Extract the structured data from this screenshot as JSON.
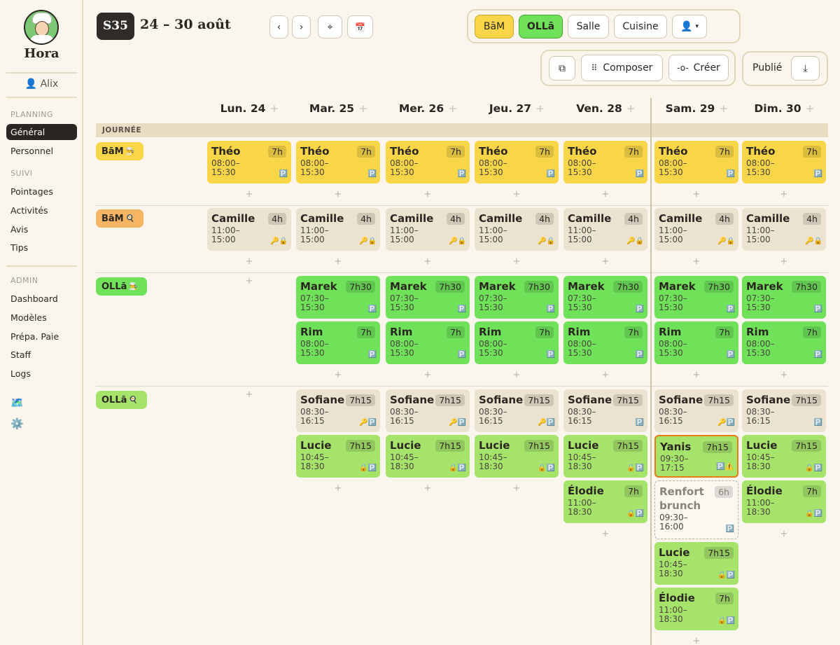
{
  "app": {
    "name": "Hora",
    "user": "Alix"
  },
  "sidebar": {
    "sections": [
      {
        "title": "PLANNING",
        "items": [
          "Général",
          "Personnel"
        ]
      },
      {
        "title": "SUIVI",
        "items": [
          "Pointages",
          "Activités",
          "Avis",
          "Tips"
        ]
      },
      {
        "title": "ADMIN",
        "items": [
          "Dashboard",
          "Modèles",
          "Prépa. Paie",
          "Staff",
          "Logs"
        ]
      }
    ],
    "active": "Général",
    "bottom_icons": [
      "🗺️",
      "⚙️"
    ]
  },
  "header": {
    "week": "S35",
    "range": "24 – 30 août",
    "prev": "‹",
    "next": "›",
    "filters": [
      "BāM",
      "OLLā",
      "Salle",
      "Cuisine"
    ],
    "actions": {
      "compose": "Composer",
      "create": "Créer",
      "published": "Publié"
    }
  },
  "colors": {
    "yellow": "#f9d648",
    "green": "#6fe25a",
    "beige": "#ebe3d0",
    "dark": "#2f2b29",
    "orange": "#e87b13"
  },
  "band": "JOURNÉE",
  "days": [
    "Lun. 24",
    "Mar. 25",
    "Mer. 26",
    "Jeu. 27",
    "Ven. 28",
    "Sam. 29",
    "Dim. 30"
  ],
  "rows": [
    {
      "label": "BāM",
      "emoji": "👨‍🍳",
      "style": "yellow",
      "cells": [
        [
          {
            "n": "Théo",
            "h": "7h",
            "t1": "08:00–",
            "t2": "15:30",
            "c": "yellow",
            "i": "🅿️"
          }
        ],
        [
          {
            "n": "Théo",
            "h": "7h",
            "t1": "08:00–",
            "t2": "15:30",
            "c": "yellow",
            "i": "🅿️"
          }
        ],
        [
          {
            "n": "Théo",
            "h": "7h",
            "t1": "08:00–",
            "t2": "15:30",
            "c": "yellow",
            "i": "🅿️"
          }
        ],
        [
          {
            "n": "Théo",
            "h": "7h",
            "t1": "08:00–",
            "t2": "15:30",
            "c": "yellow",
            "i": "🅿️"
          }
        ],
        [
          {
            "n": "Théo",
            "h": "7h",
            "t1": "08:00–",
            "t2": "15:30",
            "c": "yellow",
            "i": "🅿️"
          }
        ],
        [
          {
            "n": "Théo",
            "h": "7h",
            "t1": "08:00–",
            "t2": "15:30",
            "c": "yellow",
            "i": "🅿️"
          }
        ],
        [
          {
            "n": "Théo",
            "h": "7h",
            "t1": "08:00–",
            "t2": "15:30",
            "c": "yellow",
            "i": "🅿️"
          }
        ]
      ]
    },
    {
      "label": "BāM",
      "emoji": "🍳",
      "style": "orange",
      "cells": [
        [
          {
            "n": "Camille",
            "h": "4h",
            "t1": "11:00–",
            "t2": "15:00",
            "c": "beige",
            "i": "🔑🔒"
          }
        ],
        [
          {
            "n": "Camille",
            "h": "4h",
            "t1": "11:00–",
            "t2": "15:00",
            "c": "beige",
            "i": "🔑🔒"
          }
        ],
        [
          {
            "n": "Camille",
            "h": "4h",
            "t1": "11:00–",
            "t2": "15:00",
            "c": "beige",
            "i": "🔑🔒"
          }
        ],
        [
          {
            "n": "Camille",
            "h": "4h",
            "t1": "11:00–",
            "t2": "15:00",
            "c": "beige",
            "i": "🔑🔒"
          }
        ],
        [
          {
            "n": "Camille",
            "h": "4h",
            "t1": "11:00–",
            "t2": "15:00",
            "c": "beige",
            "i": "🔑🔒"
          }
        ],
        [
          {
            "n": "Camille",
            "h": "4h",
            "t1": "11:00–",
            "t2": "15:00",
            "c": "beige",
            "i": "🔑🔒"
          }
        ],
        [
          {
            "n": "Camille",
            "h": "4h",
            "t1": "11:00–",
            "t2": "15:00",
            "c": "beige",
            "i": "🔑🔒"
          }
        ]
      ]
    },
    {
      "label": "OLLā",
      "emoji": "👨‍🍳",
      "style": "green",
      "cells": [
        [],
        [
          {
            "n": "Marek",
            "h": "7h30",
            "t1": "07:30–",
            "t2": "15:30",
            "c": "green",
            "i": "🅿️"
          },
          {
            "n": "Rim",
            "h": "7h",
            "t1": "08:00–",
            "t2": "15:30",
            "c": "green",
            "i": "🅿️"
          }
        ],
        [
          {
            "n": "Marek",
            "h": "7h30",
            "t1": "07:30–",
            "t2": "15:30",
            "c": "green",
            "i": "🅿️"
          },
          {
            "n": "Rim",
            "h": "7h",
            "t1": "08:00–",
            "t2": "15:30",
            "c": "green",
            "i": "🅿️"
          }
        ],
        [
          {
            "n": "Marek",
            "h": "7h30",
            "t1": "07:30–",
            "t2": "15:30",
            "c": "green",
            "i": "🅿️"
          },
          {
            "n": "Rim",
            "h": "7h",
            "t1": "08:00–",
            "t2": "15:30",
            "c": "green",
            "i": "🅿️"
          }
        ],
        [
          {
            "n": "Marek",
            "h": "7h30",
            "t1": "07:30–",
            "t2": "15:30",
            "c": "green",
            "i": "🅿️"
          },
          {
            "n": "Rim",
            "h": "7h",
            "t1": "08:00–",
            "t2": "15:30",
            "c": "green",
            "i": "🅿️"
          }
        ],
        [
          {
            "n": "Marek",
            "h": "7h30",
            "t1": "07:30–",
            "t2": "15:30",
            "c": "green",
            "i": "🅿️"
          },
          {
            "n": "Rim",
            "h": "7h",
            "t1": "08:00–",
            "t2": "15:30",
            "c": "green",
            "i": "🅿️"
          }
        ],
        [
          {
            "n": "Marek",
            "h": "7h30",
            "t1": "07:30–",
            "t2": "15:30",
            "c": "green",
            "i": "🅿️"
          },
          {
            "n": "Rim",
            "h": "7h",
            "t1": "08:00–",
            "t2": "15:30",
            "c": "green",
            "i": "🅿️"
          }
        ]
      ]
    },
    {
      "label": "OLLā",
      "emoji": "🍳",
      "style": "lgreen",
      "cells": [
        [],
        [
          {
            "n": "Sofiane",
            "h": "7h15",
            "t1": "08:30–",
            "t2": "16:15",
            "c": "beige",
            "i": "🔑🅿️"
          },
          {
            "n": "Lucie",
            "h": "7h15",
            "t1": "10:45–",
            "t2": "18:30",
            "c": "lgreen",
            "i": "🔒🅿️"
          }
        ],
        [
          {
            "n": "Sofiane",
            "h": "7h15",
            "t1": "08:30–",
            "t2": "16:15",
            "c": "beige",
            "i": "🔑🅿️"
          },
          {
            "n": "Lucie",
            "h": "7h15",
            "t1": "10:45–",
            "t2": "18:30",
            "c": "lgreen",
            "i": "🔒🅿️"
          }
        ],
        [
          {
            "n": "Sofiane",
            "h": "7h15",
            "t1": "08:30–",
            "t2": "16:15",
            "c": "beige",
            "i": "🔑🅿️"
          },
          {
            "n": "Lucie",
            "h": "7h15",
            "t1": "10:45–",
            "t2": "18:30",
            "c": "lgreen",
            "i": "🔒🅿️"
          }
        ],
        [
          {
            "n": "Sofiane",
            "h": "7h15",
            "t1": "08:30–",
            "t2": "16:15",
            "c": "beige",
            "i": "🅿️"
          },
          {
            "n": "Lucie",
            "h": "7h15",
            "t1": "10:45–",
            "t2": "18:30",
            "c": "lgreen",
            "i": "🔒🅿️"
          },
          {
            "n": "Élodie",
            "h": "7h",
            "t1": "11:00–",
            "t2": "18:30",
            "c": "lgreen",
            "i": "🔒🅿️"
          }
        ],
        [
          {
            "n": "Sofiane",
            "h": "7h15",
            "t1": "08:30–",
            "t2": "16:15",
            "c": "beige",
            "i": "🔑🅿️"
          },
          {
            "n": "Yanis",
            "h": "7h15",
            "t1": "09:30–",
            "t2": "17:15",
            "c": "lgreen",
            "i": "🅿️⚠️",
            "sel": true
          },
          {
            "n": "Renfort brunch",
            "h": "6h",
            "t1": "09:30–",
            "t2": "16:00",
            "c": "dashed",
            "i": "🅿️"
          },
          {
            "n": "Lucie",
            "h": "7h15",
            "t1": "10:45–",
            "t2": "18:30",
            "c": "lgreen",
            "i": "🔒🅿️"
          },
          {
            "n": "Élodie",
            "h": "7h",
            "t1": "11:00–",
            "t2": "18:30",
            "c": "lgreen",
            "i": "🔒🅿️"
          }
        ],
        [
          {
            "n": "Sofiane",
            "h": "7h15",
            "t1": "08:30–",
            "t2": "16:15",
            "c": "beige",
            "i": "🅿️"
          },
          {
            "n": "Lucie",
            "h": "7h15",
            "t1": "10:45–",
            "t2": "18:30",
            "c": "lgreen",
            "i": "🔒🅿️"
          },
          {
            "n": "Élodie",
            "h": "7h",
            "t1": "11:00–",
            "t2": "18:30",
            "c": "lgreen",
            "i": "🔒🅿️"
          }
        ]
      ]
    }
  ]
}
